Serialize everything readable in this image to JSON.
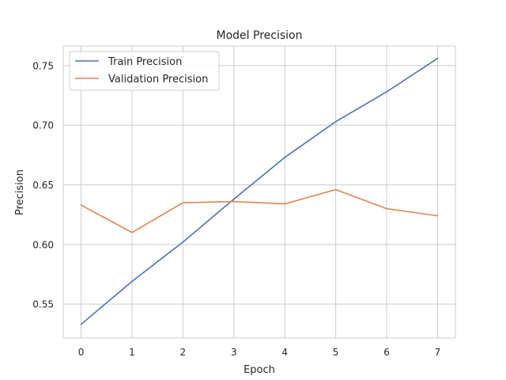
{
  "chart_data": {
    "type": "line",
    "title": "Model Precision",
    "xlabel": "Epoch",
    "ylabel": "Precision",
    "x": [
      0,
      1,
      2,
      3,
      4,
      5,
      6,
      7
    ],
    "xlim": [
      -0.35,
      7.35
    ],
    "ylim": [
      0.5215,
      0.7665
    ],
    "yticks": [
      0.55,
      0.6,
      0.65,
      0.7,
      0.75
    ],
    "ytick_labels": [
      "0.55",
      "0.60",
      "0.65",
      "0.70",
      "0.75"
    ],
    "xtick_labels": [
      "0",
      "1",
      "2",
      "3",
      "4",
      "5",
      "6",
      "7"
    ],
    "grid": true,
    "legend_position": "top-left",
    "series": [
      {
        "name": "Train Precision",
        "color": "#4c72b0",
        "values": [
          0.533,
          0.569,
          0.602,
          0.638,
          0.673,
          0.703,
          0.728,
          0.756
        ]
      },
      {
        "name": "Validation Precision",
        "color": "#dd8452",
        "values": [
          0.633,
          0.61,
          0.635,
          0.636,
          0.634,
          0.646,
          0.63,
          0.624
        ]
      }
    ]
  }
}
